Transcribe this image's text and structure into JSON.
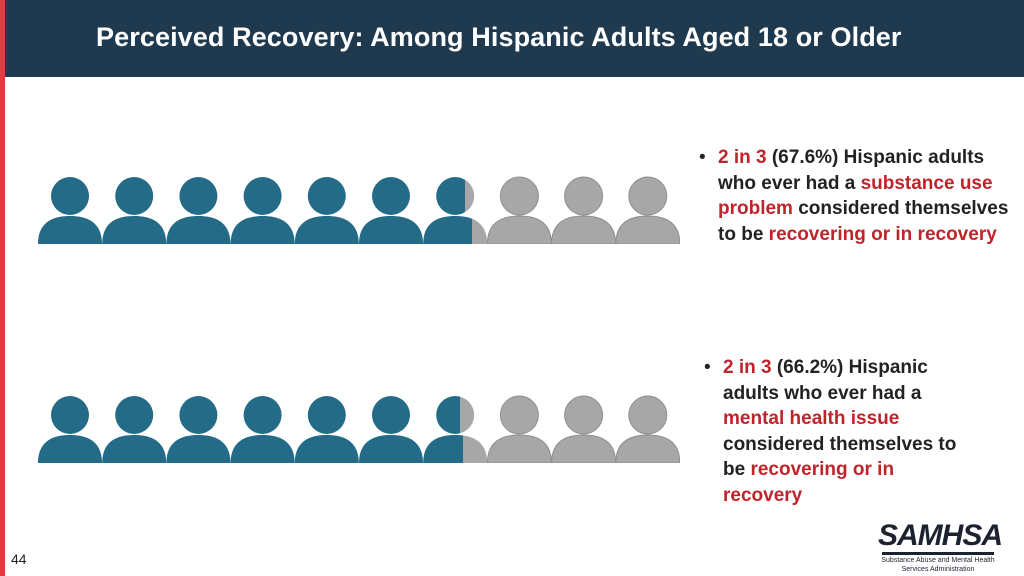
{
  "header": {
    "title": "Perceived Recovery: Among Hispanic Adults Aged 18 or Older"
  },
  "colors": {
    "filled": "#236b86",
    "empty": "#a7a7a7",
    "accent_red": "#c0242b",
    "header_bg": "#1f3a4f"
  },
  "icons": {
    "person": "person-icon"
  },
  "stats": [
    {
      "people_total": 10,
      "filled_fraction": 0.676,
      "ratio": "2 in 3",
      "percent": "(67.6%)",
      "text1": "Hispanic adults who ever had a",
      "condition": "substance use problem",
      "text2": "considered themselves to be",
      "outcome": "recovering or in recovery"
    },
    {
      "people_total": 10,
      "filled_fraction": 0.662,
      "ratio": "2 in 3",
      "percent": "(66.2%)",
      "text1": "Hispanic adults who ever had a",
      "condition": "mental health issue",
      "text2": "considered themselves to be",
      "outcome": "recovering or in recovery"
    }
  ],
  "footer": {
    "page_number": "44",
    "logo_name": "SAMHSA",
    "logo_subtitle_line1": "Substance Abuse and Mental Health",
    "logo_subtitle_line2": "Services Administration"
  }
}
